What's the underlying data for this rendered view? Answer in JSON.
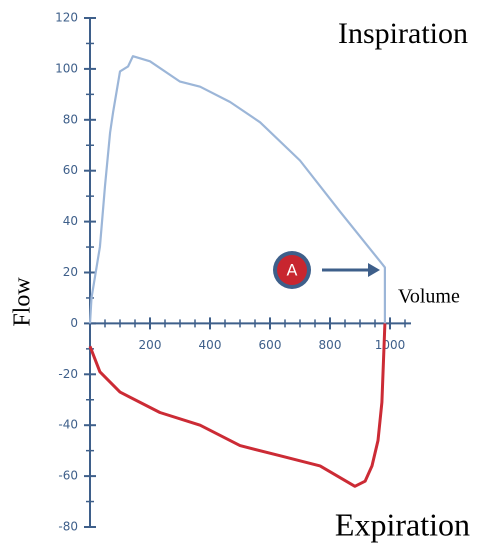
{
  "chart_data": {
    "type": "line",
    "title": "Inspiration",
    "bottom_title": "Expiration",
    "x_label": "Volume",
    "y_label": "Flow",
    "annotation": "A",
    "xlim": [
      0,
      1070
    ],
    "ylim": [
      -80,
      120
    ],
    "xticks": [
      200,
      400,
      600,
      800,
      1000
    ],
    "yticks": [
      -80,
      -60,
      -40,
      -20,
      0,
      20,
      40,
      60,
      80,
      100,
      120
    ],
    "x_minor_ticks": [
      50,
      100,
      150,
      250,
      300,
      350,
      450,
      500,
      550,
      650,
      700,
      750,
      850,
      900,
      950,
      1050
    ],
    "y_minor_ticks": [
      -70,
      -50,
      -30,
      -10,
      10,
      30,
      50,
      70,
      90,
      110
    ],
    "axis_color": "#3e5f8a",
    "series": [
      {
        "name": "Inspiration",
        "color": "#9cb6d8",
        "x": [
          0,
          5,
          33,
          50,
          67,
          77,
          100,
          127,
          143,
          200,
          300,
          367,
          467,
          567,
          700,
          833,
          983,
          983
        ],
        "values": [
          0,
          10,
          30,
          54,
          75,
          83,
          99,
          101,
          105,
          103,
          95,
          93,
          87,
          79,
          64,
          44,
          22,
          0
        ]
      },
      {
        "name": "Expiration",
        "color": "#cc2b35",
        "x": [
          0,
          33,
          100,
          233,
          367,
          500,
          633,
          767,
          883,
          917,
          940,
          960,
          973,
          983
        ],
        "values": [
          -9,
          -19,
          -27,
          -35,
          -40,
          -48,
          -52,
          -56,
          -64,
          -62,
          -56,
          -46,
          -31,
          0
        ]
      }
    ]
  }
}
